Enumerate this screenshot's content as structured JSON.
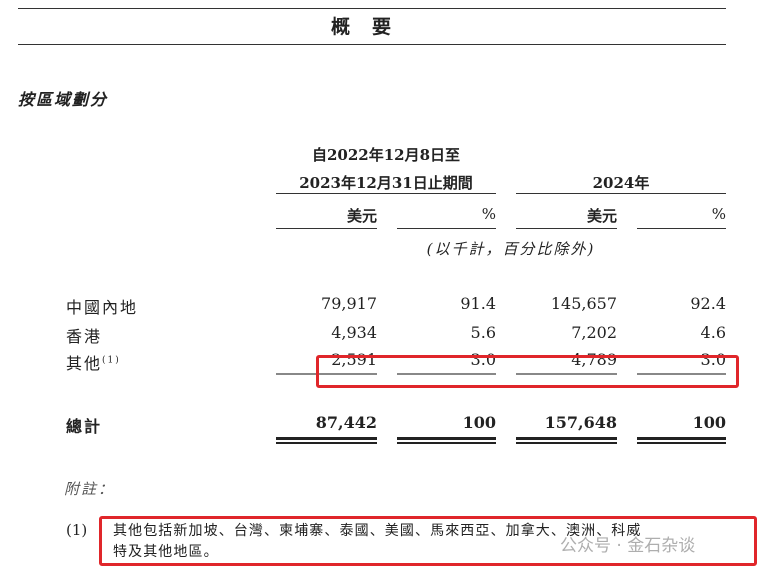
{
  "title": "概要",
  "section_title": "按區域劃分",
  "columns": {
    "period1_line1": "自2022年12月8日至",
    "period1_line2": "2023年12月31日止期間",
    "period2": "2024年",
    "usd": "美元",
    "pct": "%",
    "note": "(以千計，百分比除外)"
  },
  "rows": [
    {
      "label": "中國內地",
      "sup": "",
      "v2023": "79,917",
      "p2023": "91.4",
      "v2024": "145,657",
      "p2024": "92.4"
    },
    {
      "label": "香港",
      "sup": "",
      "v2023": "4,934",
      "p2023": "5.6",
      "v2024": "7,202",
      "p2024": "4.6"
    },
    {
      "label": "其他",
      "sup": "(1)",
      "v2023": "2,591",
      "p2023": "3.0",
      "v2024": "4,789",
      "p2024": "3.0"
    }
  ],
  "total": {
    "label": "總計",
    "v2023": "87,442",
    "p2023": "100",
    "v2024": "157,648",
    "p2024": "100"
  },
  "notes_title": "附註：",
  "footnote": {
    "marker": "(1)",
    "line1": "其他包括新加坡、台灣、柬埔寨、泰國、美國、馬來西亞、加拿大、澳洲、科威",
    "line2": "特及其他地區。"
  },
  "watermark": "公众号 · 金石杂谈",
  "highlight_color": "#e0262a"
}
